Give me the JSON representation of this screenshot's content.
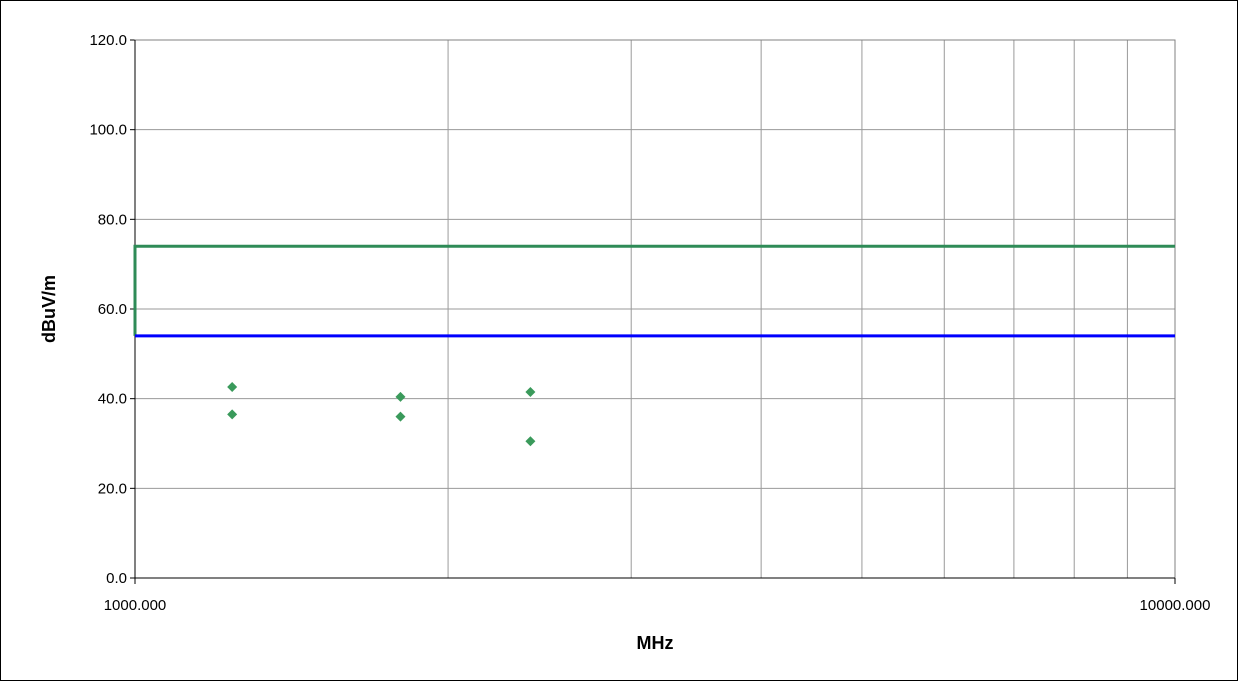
{
  "chart_data": {
    "type": "scatter",
    "title": "",
    "xlabel": "MHz",
    "ylabel": "dBuV/m",
    "x_scale": "log",
    "xlim": [
      1000,
      10000
    ],
    "ylim": [
      0,
      120
    ],
    "x_tick_labels": [
      {
        "value": 1000,
        "label": "1000.000"
      },
      {
        "value": 10000,
        "label": "10000.000"
      }
    ],
    "y_tick_labels": [
      {
        "value": 0,
        "label": "0.0"
      },
      {
        "value": 20,
        "label": "20.0"
      },
      {
        "value": 40,
        "label": "40.0"
      },
      {
        "value": 60,
        "label": "60.0"
      },
      {
        "value": 80,
        "label": "80.0"
      },
      {
        "value": 100,
        "label": "100.0"
      },
      {
        "value": 120,
        "label": "120.0"
      }
    ],
    "grid": true,
    "legend": "none",
    "limit_lines": [
      {
        "color": "#2e8b57",
        "points": [
          [
            1000,
            54
          ],
          [
            1000,
            74
          ],
          [
            10000,
            74
          ]
        ]
      },
      {
        "color": "#0000ff",
        "points": [
          [
            1000,
            54
          ],
          [
            10000,
            54
          ]
        ]
      }
    ],
    "series": [
      {
        "color": "#3a9a5b",
        "marker": "diamond",
        "points": [
          {
            "x": 1240,
            "y": 42.6
          },
          {
            "x": 1240,
            "y": 36.5
          },
          {
            "x": 1800,
            "y": 40.4
          },
          {
            "x": 1800,
            "y": 36.0
          },
          {
            "x": 2400,
            "y": 41.5
          },
          {
            "x": 2400,
            "y": 30.5
          }
        ]
      }
    ]
  }
}
